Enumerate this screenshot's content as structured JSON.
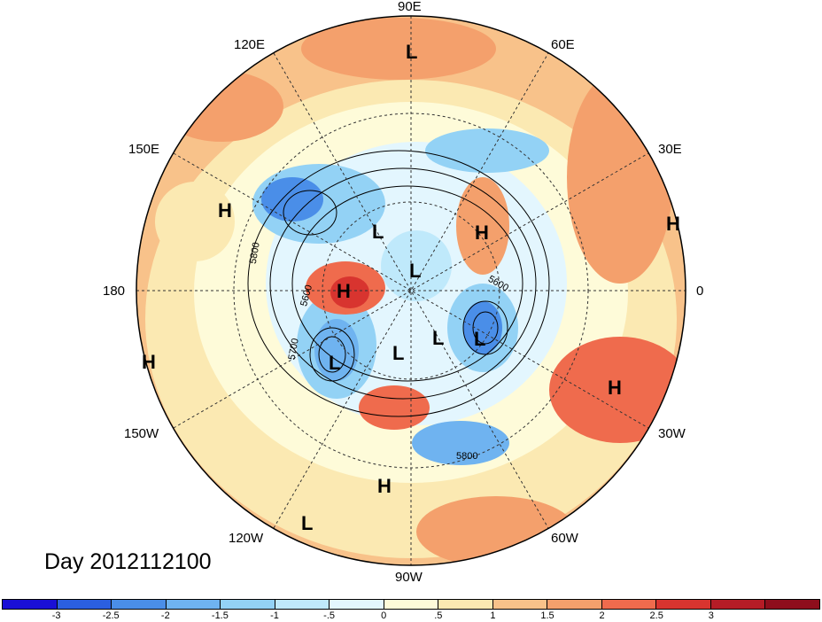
{
  "title": "Day 2012112100",
  "longitude_labels": [
    "90E",
    "60E",
    "30E",
    "0",
    "30W",
    "60W",
    "90W",
    "120W",
    "150W",
    "180",
    "150E",
    "120E"
  ],
  "pressure_centers": [
    {
      "kind": "L",
      "name": "low-siberia"
    },
    {
      "kind": "H",
      "name": "high-east-asia"
    },
    {
      "kind": "L",
      "name": "low-arctic-asia"
    },
    {
      "kind": "H",
      "name": "high-europe-east"
    },
    {
      "kind": "H",
      "name": "high-africa-east"
    },
    {
      "kind": "L",
      "name": "low-arctic-center"
    },
    {
      "kind": "H",
      "name": "high-alaska"
    },
    {
      "kind": "L",
      "name": "low-pacific-north"
    },
    {
      "kind": "L",
      "name": "low-canada"
    },
    {
      "kind": "L",
      "name": "low-hudson"
    },
    {
      "kind": "L",
      "name": "low-north-atlantic"
    },
    {
      "kind": "H",
      "name": "high-atlantic-africa"
    },
    {
      "kind": "H",
      "name": "high-pacific-west"
    },
    {
      "kind": "H",
      "name": "high-mexico"
    },
    {
      "kind": "L",
      "name": "low-pacific-east"
    }
  ],
  "contour_labels": [
    "5800",
    "5600",
    "5700",
    "5800",
    "5600"
  ],
  "colorbar": {
    "colors": [
      "#1a0fd6",
      "#2b5fe0",
      "#4a8ee8",
      "#6fb3f0",
      "#93d2f5",
      "#bfe9fb",
      "#e3f6fe",
      "#fefbd9",
      "#fbe9b2",
      "#f8c28a",
      "#f4a06c",
      "#ef6b4d",
      "#d8342f",
      "#b51c26",
      "#8e0e1c"
    ],
    "ticks": [
      "-3",
      "-2.5",
      "-2",
      "-1.5",
      "-1",
      "-.5",
      "0",
      ".5",
      "1",
      "1.5",
      "2",
      "2.5",
      "3"
    ]
  }
}
